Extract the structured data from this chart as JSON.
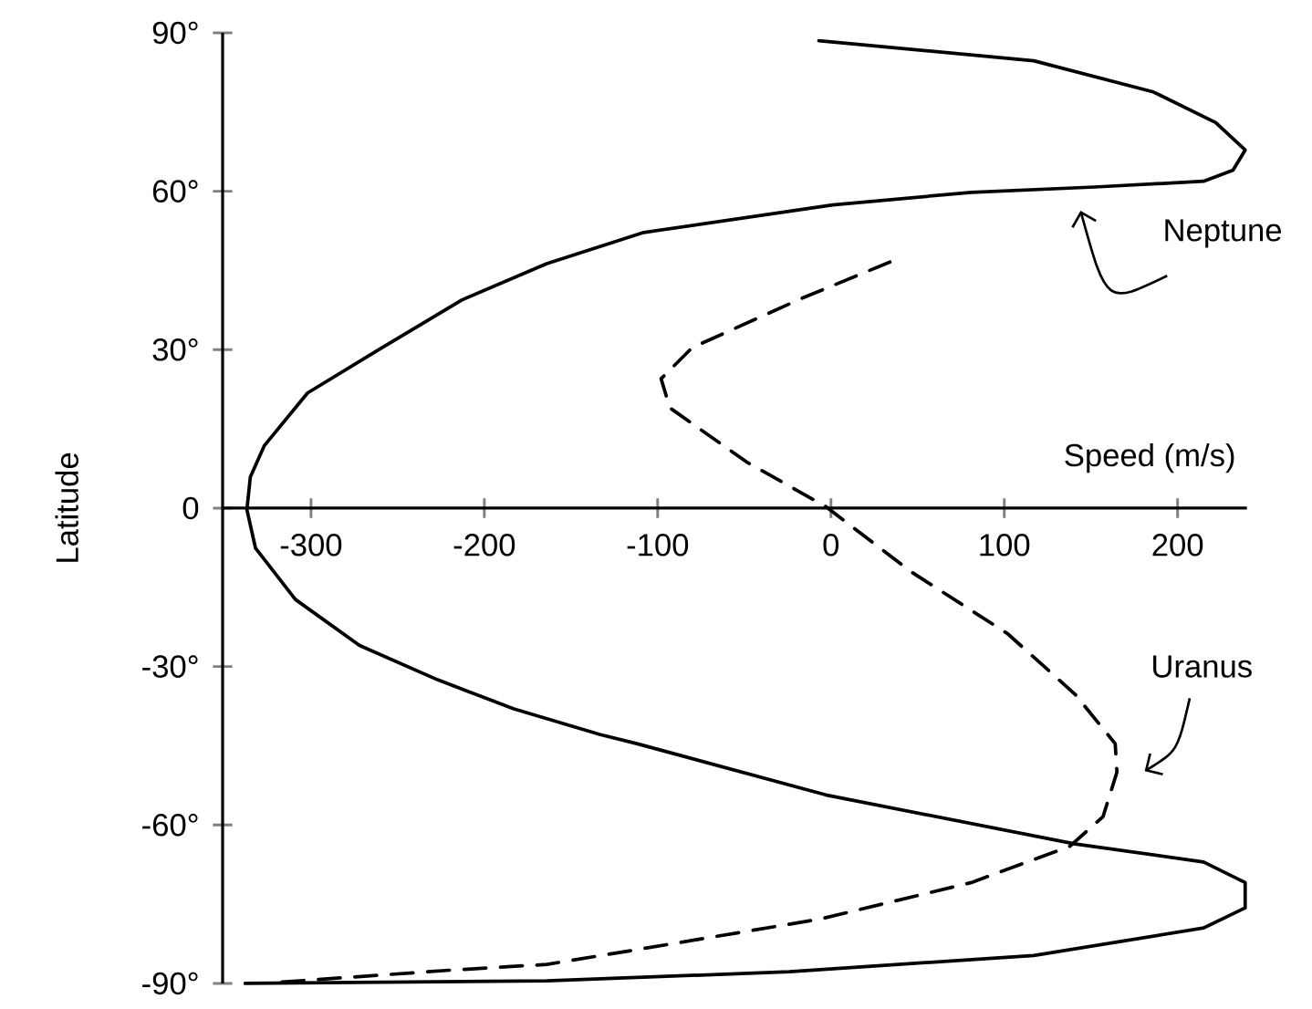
{
  "chart_data": {
    "type": "line",
    "xlabel": "Speed (m/s)",
    "ylabel": "Latitude",
    "xlim": [
      -351,
      240
    ],
    "ylim": [
      -90,
      90
    ],
    "xticks": [
      -300,
      -200,
      -100,
      0,
      100,
      200
    ],
    "yticks": [
      {
        "value": -90,
        "label": "-90°"
      },
      {
        "value": -60,
        "label": "-60°"
      },
      {
        "value": -30,
        "label": "-30°"
      },
      0,
      {
        "value": 30,
        "label": "30°"
      },
      {
        "value": 60,
        "label": "60°"
      },
      {
        "value": 90,
        "label": "90°"
      }
    ],
    "grid": false,
    "series": [
      {
        "name": "Neptune",
        "color": "#000000",
        "line_style": "solid",
        "x": [
          -7,
          117,
          186,
          222,
          239,
          232,
          215,
          152,
          81,
          1,
          -108,
          -164,
          -213,
          -261,
          -302,
          -327,
          -335,
          -337,
          -332,
          -309,
          -272,
          -227,
          -183,
          -133,
          -112,
          -3,
          141,
          215,
          239,
          239,
          215,
          117,
          -24,
          -164,
          -338
        ],
        "values": [
          88.5,
          84.7,
          78.8,
          73,
          67.8,
          64,
          61.9,
          60.8,
          59.8,
          57.4,
          52.2,
          46.3,
          39.4,
          30,
          21.8,
          11.8,
          5.9,
          -0.3,
          -7.6,
          -17.3,
          -26,
          -32.5,
          -38,
          -42.9,
          -44.6,
          -54.3,
          -63.6,
          -67,
          -70.9,
          -75.7,
          -79.5,
          -84.7,
          -87.8,
          -89.5,
          -90
        ]
      },
      {
        "name": "Uranus",
        "color": "#000000",
        "line_style": "dashed",
        "x": [
          34,
          -17,
          -80,
          -98,
          -93,
          -48,
          -3,
          46,
          102,
          141,
          164,
          165,
          157,
          138,
          81,
          -6,
          -112,
          -164,
          -220,
          -324
        ],
        "values": [
          46.6,
          39.7,
          30.4,
          24.5,
          19,
          8.6,
          0.3,
          -12,
          -23.8,
          -35.3,
          -44.6,
          -50,
          -58.4,
          -64,
          -70.9,
          -77.8,
          -83.6,
          -86.4,
          -87.5,
          -89.9
        ]
      }
    ]
  }
}
